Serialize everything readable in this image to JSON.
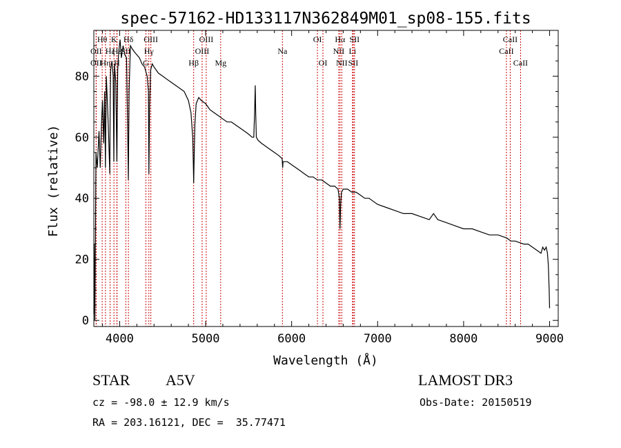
{
  "chart_data": {
    "type": "line",
    "title": "spec-57162-HD133117N362849M01_sp08-155.fits",
    "xlabel": "Wavelength (Å)",
    "ylabel": "Flux (relative)",
    "xlim": [
      3700,
      9100
    ],
    "ylim": [
      -2,
      95
    ],
    "x_ticks": [
      4000,
      5000,
      6000,
      7000,
      8000,
      9000
    ],
    "y_ticks": [
      0,
      20,
      40,
      60,
      80
    ],
    "series": [
      {
        "name": "spectrum",
        "x": [
          3700,
          3705,
          3712,
          3725,
          3740,
          3760,
          3775,
          3790,
          3800,
          3815,
          3825,
          3835,
          3845,
          3860,
          3870,
          3885,
          3890,
          3895,
          3910,
          3925,
          3933,
          3940,
          3955,
          3968,
          3978,
          3990,
          4005,
          4020,
          4040,
          4060,
          4080,
          4095,
          4101,
          4110,
          4125,
          4145,
          4170,
          4200,
          4230,
          4260,
          4290,
          4320,
          4335,
          4340,
          4348,
          4360,
          4380,
          4400,
          4450,
          4500,
          4550,
          4600,
          4650,
          4700,
          4750,
          4800,
          4830,
          4850,
          4856,
          4861,
          4866,
          4875,
          4890,
          4920,
          4950,
          5000,
          5050,
          5100,
          5150,
          5200,
          5250,
          5300,
          5350,
          5400,
          5450,
          5500,
          5540,
          5560,
          5570,
          5577,
          5582,
          5590,
          5610,
          5650,
          5700,
          5750,
          5800,
          5850,
          5890,
          5896,
          5900,
          5950,
          6000,
          6050,
          6100,
          6150,
          6200,
          6250,
          6300,
          6350,
          6400,
          6450,
          6500,
          6540,
          6555,
          6563,
          6570,
          6580,
          6600,
          6650,
          6700,
          6750,
          6800,
          6850,
          6900,
          6950,
          7000,
          7100,
          7200,
          7300,
          7400,
          7500,
          7600,
          7650,
          7700,
          7800,
          7900,
          8000,
          8100,
          8200,
          8300,
          8400,
          8500,
          8550,
          8600,
          8650,
          8700,
          8750,
          8800,
          8850,
          8900,
          8920,
          8940,
          8960,
          8975,
          8985,
          8995,
          9000
        ],
        "y": [
          2,
          25,
          0,
          55,
          50,
          62,
          50,
          65,
          72,
          58,
          75,
          50,
          80,
          70,
          62,
          48,
          72,
          82,
          85,
          80,
          52,
          84,
          78,
          52,
          82,
          88,
          92,
          86,
          90,
          87,
          86,
          60,
          46,
          75,
          90,
          89,
          88,
          87,
          86,
          84,
          83,
          80,
          75,
          48,
          70,
          82,
          84,
          83,
          81,
          80,
          79,
          78,
          77,
          76,
          75,
          72,
          68,
          60,
          52,
          45,
          52,
          64,
          71,
          73,
          72,
          71,
          69,
          68,
          67,
          66,
          65,
          65,
          64,
          63,
          62,
          61,
          60,
          60,
          69,
          77,
          68,
          60,
          59,
          58,
          57,
          56,
          55,
          54,
          53,
          50,
          52,
          52,
          51,
          50,
          49,
          48,
          47,
          47,
          46,
          46,
          45,
          44,
          44,
          43,
          40,
          30,
          38,
          42,
          43,
          43,
          42,
          42,
          41,
          40,
          40,
          39,
          38,
          37,
          36,
          35,
          35,
          34,
          33,
          35,
          33,
          32,
          31,
          30,
          30,
          29,
          28,
          28,
          27,
          26,
          26,
          25.5,
          25,
          25,
          24,
          23,
          22,
          24,
          23,
          24,
          22,
          18,
          10,
          4
        ]
      }
    ],
    "line_markers": [
      {
        "label": "OII",
        "x": 3727,
        "row": 3
      },
      {
        "label": "OII",
        "x": 3727,
        "row": 2
      },
      {
        "label": "Hθ",
        "x": 3797,
        "row": 1
      },
      {
        "label": "Hη",
        "x": 3835,
        "row": 3
      },
      {
        "label": "Hζ",
        "x": 3889,
        "row": 2
      },
      {
        "label": "K",
        "x": 3934,
        "row": 1
      },
      {
        "label": "H",
        "x": 3968,
        "row": 3
      },
      {
        "label": "Hε",
        "x": 3970,
        "row": 2
      },
      {
        "label": "SII",
        "x": 4072,
        "row": 2
      },
      {
        "label": "Hδ",
        "x": 4102,
        "row": 1
      },
      {
        "label": "G",
        "x": 4305,
        "row": 3
      },
      {
        "label": "Hγ",
        "x": 4340,
        "row": 2
      },
      {
        "label": "OIII",
        "x": 4363,
        "row": 1
      },
      {
        "label": "Hβ",
        "x": 4861,
        "row": 3
      },
      {
        "label": "OIII",
        "x": 4959,
        "row": 2
      },
      {
        "label": "OIII",
        "x": 5007,
        "row": 1
      },
      {
        "label": "Mg",
        "x": 5175,
        "row": 3
      },
      {
        "label": "Na",
        "x": 5893,
        "row": 2
      },
      {
        "label": "OI",
        "x": 6300,
        "row": 1
      },
      {
        "label": "OI",
        "x": 6364,
        "row": 3
      },
      {
        "label": "NII",
        "x": 6548,
        "row": 2
      },
      {
        "label": "Hα",
        "x": 6563,
        "row": 1
      },
      {
        "label": "NII",
        "x": 6583,
        "row": 3
      },
      {
        "label": "Li",
        "x": 6708,
        "row": 2
      },
      {
        "label": "SII",
        "x": 6716,
        "row": 3
      },
      {
        "label": "SII",
        "x": 6731,
        "row": 1
      },
      {
        "label": "CaII",
        "x": 8498,
        "row": 2
      },
      {
        "label": "CaII",
        "x": 8542,
        "row": 1
      },
      {
        "label": "CaII",
        "x": 8662,
        "row": 3
      }
    ]
  },
  "info": {
    "object_type": "STAR",
    "spectral_class": "A5V",
    "survey": "LAMOST DR3",
    "redshift": "cz = -98.0 ± 12.9 km/s",
    "obs_date": "Obs-Date: 20150519",
    "coords": "RA = 203.16121, DEC =  35.77471"
  },
  "colors": {
    "spectrum": "#000000",
    "marker_line": "#cc0000",
    "text": "#000000"
  }
}
